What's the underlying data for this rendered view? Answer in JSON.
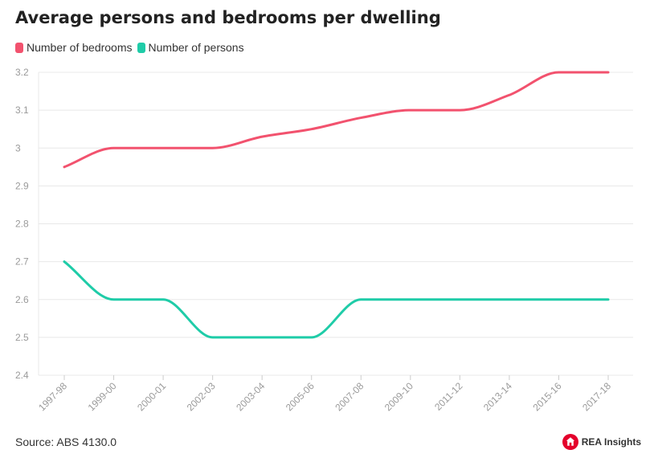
{
  "colors": {
    "bedrooms": "#f2526e",
    "persons": "#1fcca8",
    "grid": "#e8e8e8",
    "tick_text": "#9a9a9a",
    "brand_red": "#e4002b"
  },
  "footer": {
    "source": "Source: ABS 4130.0",
    "brand_name": "REA Insights",
    "brand_icon": "house-logo-icon"
  },
  "chart_data": {
    "type": "line",
    "title": "Average persons and bedrooms per dwelling",
    "xlabel": "",
    "ylabel": "",
    "legend_position": "top-left",
    "grid": true,
    "smooth": true,
    "ylim": [
      2.4,
      3.2
    ],
    "yticks": [
      "2.4",
      "2.5",
      "2.6",
      "2.7",
      "2.8",
      "2.9",
      "3",
      "3.1",
      "3.2"
    ],
    "categories": [
      "1997-98",
      "1999-00",
      "2000-01",
      "2002-03",
      "2003-04",
      "2005-06",
      "2007-08",
      "2009-10",
      "2011-12",
      "2013-14",
      "2015-16",
      "2017-18"
    ],
    "series": [
      {
        "name": "Number of bedrooms",
        "color": "#f2526e",
        "values": [
          2.95,
          3.0,
          3.0,
          3.0,
          3.03,
          3.05,
          3.08,
          3.1,
          3.1,
          3.14,
          3.2,
          3.2
        ]
      },
      {
        "name": "Number of persons",
        "color": "#1fcca8",
        "values": [
          2.7,
          2.6,
          2.6,
          2.5,
          2.5,
          2.5,
          2.6,
          2.6,
          2.6,
          2.6,
          2.6,
          2.6
        ]
      }
    ]
  }
}
